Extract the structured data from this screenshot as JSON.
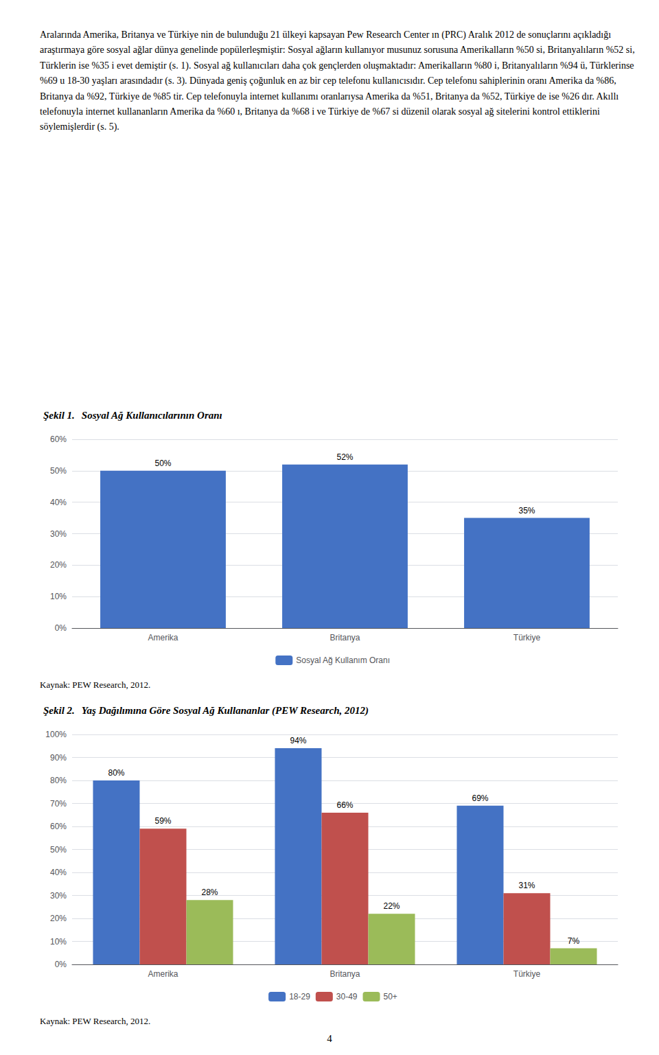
{
  "page_text": "Aralarında Amerika, Britanya ve Türkiye nin de bulunduğu 21 ülkeyi kapsayan Pew Research Center ın (PRC) Aralık 2012 de sonuçlarını açıkladığı araştırmaya göre sosyal ağlar dünya genelinde popülerleşmiştir: Sosyal ağların kullanıyor musunuz sorusuna Amerikalların %50 si, Britanyalıların %52 si, Türklerin ise %35 i evet demiştir (s. 1). Sosyal ağ kullanıcıları daha çok gençlerden oluşmaktadır: Amerikalların %80 i, Britanyalıların %94 ü, Türklerinse %69 u 18-30 yaşları arasındadır (s. 3). Dünyada geniş çoğunluk en az bir cep telefonu kullanıcısıdır. Cep telefonu sahiplerinin oranı Amerika da %86, Britanya da %92, Türkiye de %85 tir. Cep telefonuyla internet kullanımı oranlarıysa Amerika da %51, Britanya da %52, Türkiye de ise %26 dır. Akıllı telefonuyla internet kullananların Amerika da %60 ı, Britanya da %68 i ve Türkiye de %67 si düzenil olarak sosyal ağ sitelerini kontrol ettiklerini söylemişlerdir (s. 5).",
  "page_number": "4",
  "chart_data": [
    {
      "type": "bar",
      "title": "Şekil 1.",
      "subtitle": "Sosyal Ağ Kullanıcılarının Oranı",
      "categories": [
        "Amerika",
        "Britanya",
        "Türkiye"
      ],
      "series": [
        {
          "name": "Sosyal Ağ Kullanım Oranı",
          "color": "#4472C4",
          "values": [
            50,
            52,
            35
          ],
          "value_labels": [
            "50%",
            "52%",
            "35%"
          ]
        }
      ],
      "ylim": [
        0,
        60
      ],
      "yticks": [
        {
          "value": 0,
          "label": "0%"
        },
        {
          "value": 10,
          "label": "10%"
        },
        {
          "value": 20,
          "label": "20%"
        },
        {
          "value": 30,
          "label": "30%"
        },
        {
          "value": 40,
          "label": "40%"
        },
        {
          "value": 50,
          "label": "50%"
        },
        {
          "value": 60,
          "label": "60%"
        }
      ],
      "grid": true,
      "legend": "bottom",
      "data_labels": true,
      "annotations": [
        "Kaynak: PEW Research, 2012."
      ]
    },
    {
      "type": "bar",
      "title": "Şekil 2.",
      "subtitle": "Yaş Dağılımına Göre Sosyal Ağ Kullananlar (PEW Research, 2012)",
      "categories": [
        "Amerika",
        "Britanya",
        "Türkiye"
      ],
      "series": [
        {
          "name": "18-29",
          "color": "#4472C4",
          "values": [
            80,
            94,
            69
          ],
          "value_labels": [
            "80%",
            "94%",
            "69%"
          ]
        },
        {
          "name": "30-49",
          "color": "#C0504D",
          "values": [
            59,
            66,
            31
          ],
          "value_labels": [
            "59%",
            "66%",
            "31%"
          ]
        },
        {
          "name": "50+",
          "color": "#9BBB59",
          "values": [
            28,
            22,
            7
          ],
          "value_labels": [
            "28%",
            "22%",
            "7%"
          ]
        }
      ],
      "ylim": [
        0,
        100
      ],
      "yticks": [
        {
          "value": 0,
          "label": "0%"
        },
        {
          "value": 10,
          "label": "10%"
        },
        {
          "value": 20,
          "label": "20%"
        },
        {
          "value": 30,
          "label": "30%"
        },
        {
          "value": 40,
          "label": "40%"
        },
        {
          "value": 50,
          "label": "50%"
        },
        {
          "value": 60,
          "label": "60%"
        },
        {
          "value": 70,
          "label": "70%"
        },
        {
          "value": 80,
          "label": "80%"
        },
        {
          "value": 90,
          "label": "90%"
        },
        {
          "value": 100,
          "label": "100%"
        }
      ],
      "grid": true,
      "legend": "bottom",
      "data_labels": true,
      "annotations": [
        "Kaynak: PEW Research, 2012."
      ]
    }
  ]
}
